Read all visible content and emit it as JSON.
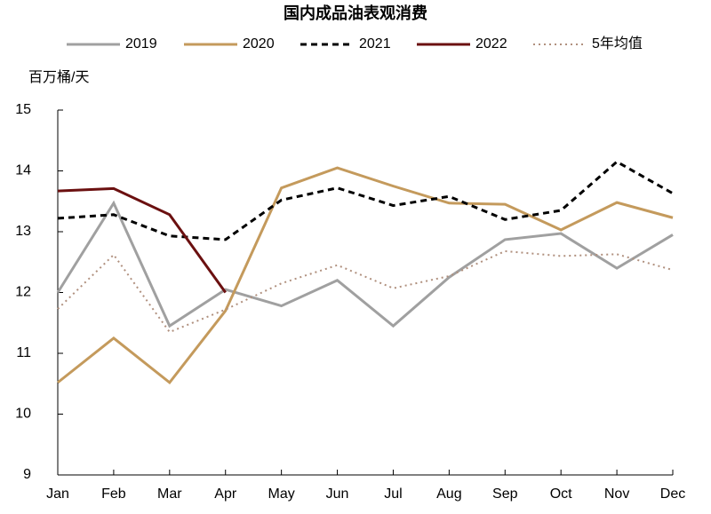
{
  "chart_data": {
    "type": "line",
    "title": "国内成品油表观消费",
    "y_label": "百万桶/天",
    "categories": [
      "Jan",
      "Feb",
      "Mar",
      "Apr",
      "May",
      "Jun",
      "Jul",
      "Aug",
      "Sep",
      "Oct",
      "Nov",
      "Dec"
    ],
    "series": [
      {
        "name": "2019",
        "color": "#a0a0a0",
        "dash": "solid",
        "values": [
          12.0,
          13.47,
          11.45,
          12.05,
          11.78,
          12.2,
          11.45,
          12.25,
          12.87,
          12.97,
          12.4,
          12.95
        ]
      },
      {
        "name": "2020",
        "color": "#c49a5c",
        "dash": "solid",
        "values": [
          10.52,
          11.25,
          10.52,
          11.7,
          13.72,
          14.05,
          13.75,
          13.47,
          13.45,
          13.03,
          13.48,
          13.23
        ]
      },
      {
        "name": "2021",
        "color": "#000000",
        "dash": "dashed",
        "values": [
          13.22,
          13.28,
          12.93,
          12.87,
          13.52,
          13.72,
          13.43,
          13.58,
          13.2,
          13.35,
          14.15,
          13.63
        ]
      },
      {
        "name": "2022",
        "color": "#6b1010",
        "dash": "solid",
        "values": [
          13.67,
          13.71,
          13.28,
          12.0,
          null,
          null,
          null,
          null,
          null,
          null,
          null,
          null
        ]
      },
      {
        "name": "5年均值",
        "color": "#b0907e",
        "dash": "dotted",
        "values": [
          11.73,
          12.62,
          11.35,
          11.72,
          12.15,
          12.45,
          12.07,
          12.27,
          12.68,
          12.6,
          12.63,
          12.37
        ]
      }
    ],
    "ylim": [
      9,
      15
    ],
    "yticks": [
      9,
      10,
      11,
      12,
      13,
      14,
      15
    ],
    "grid": false,
    "legend": "top"
  }
}
